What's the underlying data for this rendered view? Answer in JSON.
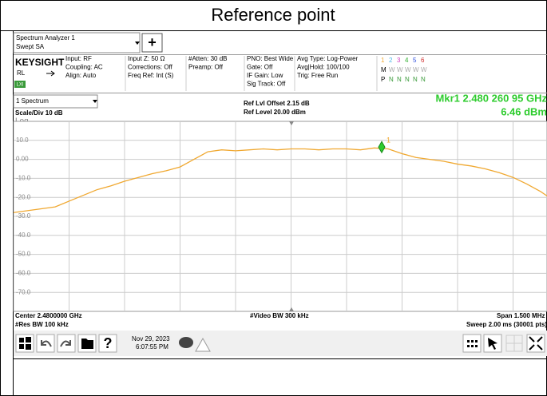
{
  "title": "Reference point",
  "app": {
    "tab_line1": "Spectrum Analyzer 1",
    "tab_line2": "Swept SA",
    "add_button": "+"
  },
  "status": {
    "brand": "KEYSIGHT",
    "rl": "RL",
    "lxi": "LXI",
    "columns": [
      [
        "Input: RF",
        "Coupling: AC",
        "Align: Auto"
      ],
      [
        "Input Z: 50 Ω",
        "Corrections: Off",
        "Freq Ref: Int (S)"
      ],
      [
        "#Atten: 30 dB",
        "Preamp: Off"
      ],
      [
        "PNO: Best Wide",
        "Gate: Off",
        "IF Gain: Low",
        "Sig Track: Off"
      ],
      [
        "Avg Type: Log-Power",
        "Avg|Hold: 100/100",
        "Trig: Free Run"
      ]
    ],
    "trace_numbers": [
      "1",
      "2",
      "3",
      "4",
      "5",
      "6"
    ],
    "trace_modes": [
      "M",
      "W",
      "W",
      "W",
      "W",
      "W"
    ],
    "trace_detectors": [
      "P",
      "N",
      "N",
      "N",
      "N",
      "N"
    ]
  },
  "window": {
    "selector": "1 Spectrum"
  },
  "chart_data": {
    "type": "line",
    "scale_label": "Scale/Div 10 dB",
    "y_scale_type": "Log",
    "ref_offset": "Ref Lvl Offset 2.15 dB",
    "ref_level": "Ref Level 20.00 dBm",
    "ylim": [
      -80,
      20
    ],
    "yticks": [
      {
        "value": 10,
        "label": "10.0"
      },
      {
        "value": 0,
        "label": "0.00"
      },
      {
        "value": -10,
        "label": "-10.0"
      },
      {
        "value": -20,
        "label": "-20.0"
      },
      {
        "value": -30,
        "label": "-30.0"
      },
      {
        "value": -40,
        "label": "-40.0"
      },
      {
        "value": -50,
        "label": "-50.0"
      },
      {
        "value": -60,
        "label": "-60.0"
      },
      {
        "value": -70,
        "label": "-70.0"
      }
    ],
    "grid": true,
    "series": [
      {
        "color": "#f0a830",
        "values": [
          -28,
          -27,
          -26,
          -25,
          -22,
          -19,
          -16,
          -14,
          -11.5,
          -9.5,
          -7.5,
          -6,
          -4,
          0,
          4,
          5,
          4.5,
          5,
          5.5,
          5,
          5.5,
          5.5,
          5,
          5.5,
          5.5,
          5,
          6,
          5.5,
          3,
          1,
          0,
          -1,
          -2.5,
          -3.5,
          -5,
          -7,
          -9.5,
          -13,
          -17,
          -22,
          -25
        ]
      }
    ],
    "marker": {
      "name": "1",
      "frequency_label": "Mkr1  2.480 260 95 GHz",
      "amplitude": 6.46,
      "amplitude_label": "6.46 dBm"
    },
    "footer": {
      "center": "Center 2.4800000 GHz",
      "res_bw": "#Res BW 100 kHz",
      "video_bw": "#Video BW 300 kHz",
      "span": "Span 1.500 MHz",
      "sweep": "Sweep 2.00 ms (30001 pts)"
    }
  },
  "toolbar": {
    "help": "?",
    "date": "Nov 29, 2023",
    "time": "6:07:55 PM"
  }
}
